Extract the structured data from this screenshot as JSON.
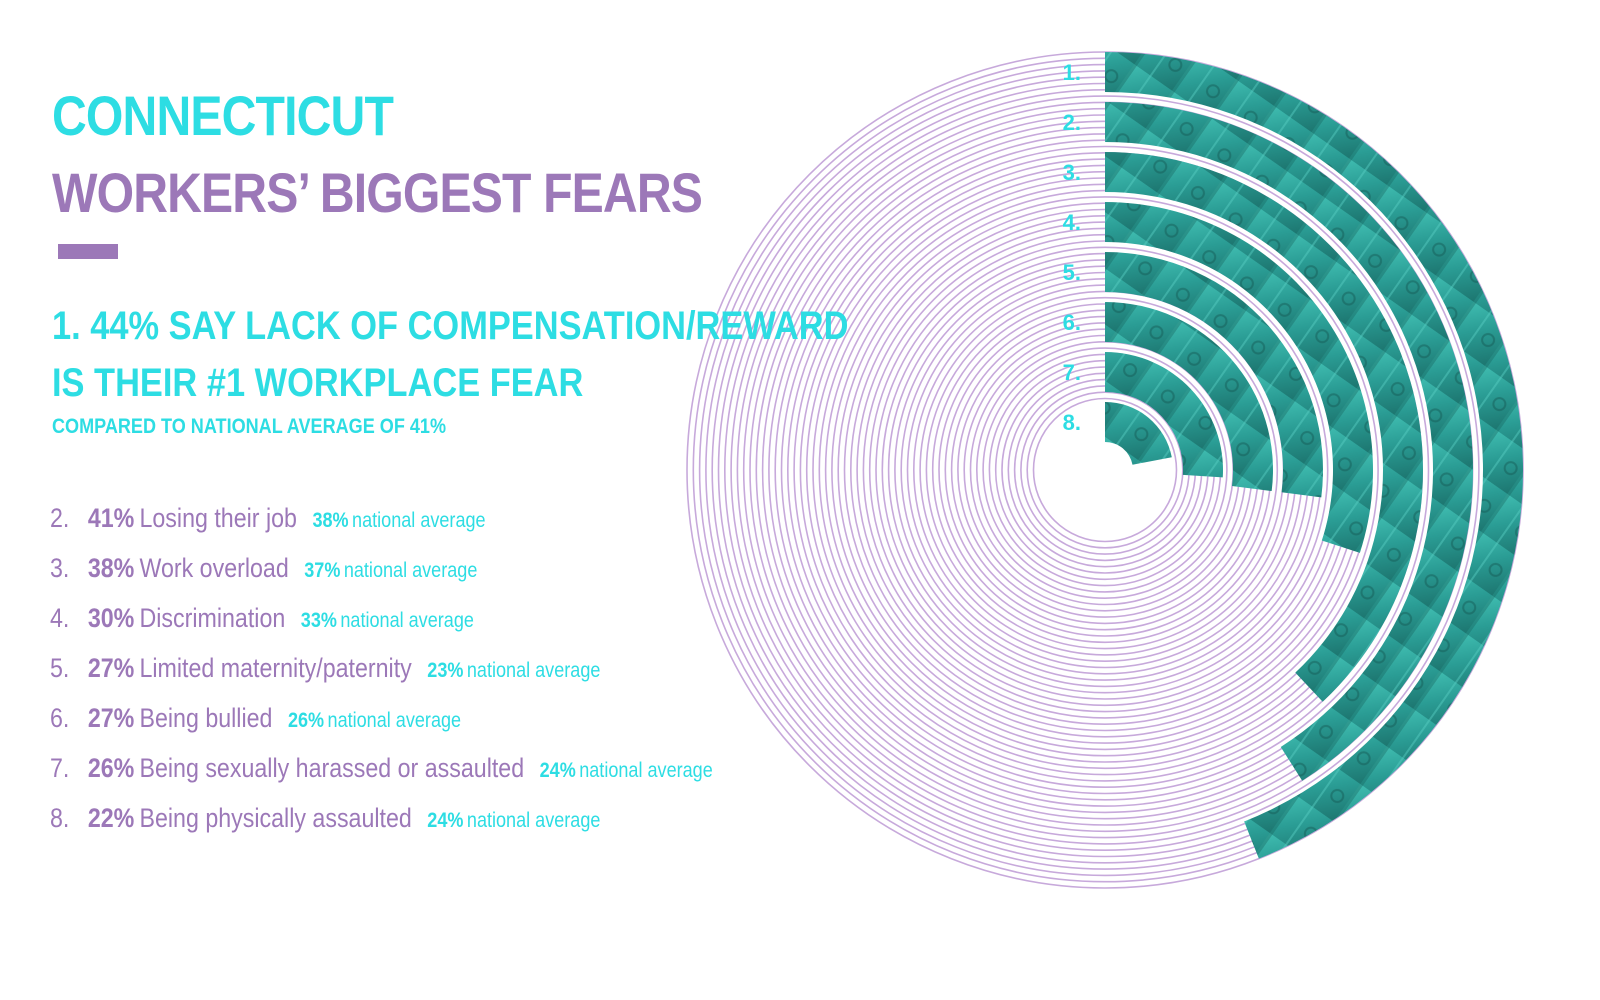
{
  "title": {
    "line1": "CONNECTICUT",
    "line2": "WORKERS’ BIGGEST FEARS"
  },
  "headline": {
    "line1": "1. 44% SAY LACK OF COMPENSATION/REWARD",
    "line2": "IS THEIR #1 WORKPLACE FEAR",
    "sub": "COMPARED TO NATIONAL AVERAGE OF 41%"
  },
  "fears": [
    {
      "rank": "2.",
      "pct": "41%",
      "label": "Losing their job",
      "national_pct": "38%",
      "national_text": "national average"
    },
    {
      "rank": "3.",
      "pct": "38%",
      "label": "Work overload",
      "national_pct": "37%",
      "national_text": "national average"
    },
    {
      "rank": "4.",
      "pct": "30%",
      "label": "Discrimination",
      "national_pct": "33%",
      "national_text": "national average"
    },
    {
      "rank": "5.",
      "pct": "27%",
      "label": "Limited maternity/paternity",
      "national_pct": "23%",
      "national_text": "national average"
    },
    {
      "rank": "6.",
      "pct": "27%",
      "label": "Being bullied",
      "national_pct": "26%",
      "national_text": "national average"
    },
    {
      "rank": "7.",
      "pct": "26%",
      "label": "Being sexually harassed or assaulted",
      "national_pct": "24%",
      "national_text": "national average"
    },
    {
      "rank": "8.",
      "pct": "22%",
      "label": "Being physically assaulted",
      "national_pct": "24%",
      "national_text": "national average"
    }
  ],
  "colors": {
    "cyan": "#2ddde3",
    "purple": "#9c78b8",
    "ring_line": "#c7a9db",
    "fill_teal": "#2fa8a0",
    "fill_dark": "#1c6e69"
  },
  "chart_data": {
    "type": "radial-bar",
    "ring_labels": [
      "1.",
      "2.",
      "3.",
      "4.",
      "5.",
      "6.",
      "7.",
      "8."
    ],
    "values": [
      44,
      41,
      38,
      30,
      27,
      27,
      26,
      22
    ],
    "national_average": [
      41,
      38,
      37,
      33,
      23,
      26,
      24,
      24
    ],
    "unit": "%"
  }
}
